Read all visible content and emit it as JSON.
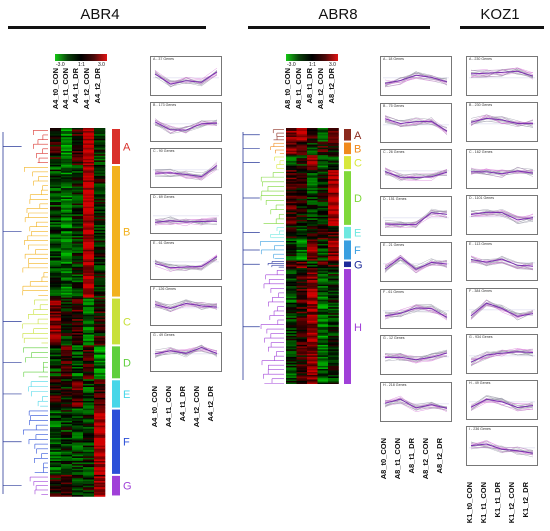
{
  "groups": [
    {
      "key": "abr4",
      "title": "ABR4",
      "color_scale": {
        "min": "-3.0",
        "mid": "1:1",
        "max": "3.0"
      },
      "heatmap_columns": [
        "A4_t0_CON",
        "A4_t1_CON",
        "A4_t1_DR",
        "A4_t2_CON",
        "A4_t2_DR"
      ],
      "profile_columns": [
        "A4_t0_CON",
        "A4_t1_CON",
        "A4_t1_DR",
        "A4_t2_CON",
        "A4_t2_DR"
      ],
      "clusters": [
        {
          "letter": "A",
          "color": "#d9302a"
        },
        {
          "letter": "B",
          "color": "#f2b21f"
        },
        {
          "letter": "C",
          "color": "#c8e03a"
        },
        {
          "letter": "D",
          "color": "#5fcf3c"
        },
        {
          "letter": "E",
          "color": "#47d6e8"
        },
        {
          "letter": "F",
          "color": "#2b4fd8"
        },
        {
          "letter": "G",
          "color": "#a040d8"
        }
      ],
      "profiles": [
        "A - 37 Genes",
        "B - 173 Genes",
        "C - 90 Genes",
        "D - 69 Genes",
        "E - 61 Genes",
        "F - 126 Genes",
        "G - 49 Genes"
      ]
    },
    {
      "key": "abr8",
      "title": "ABR8",
      "color_scale": {
        "min": "-3.0",
        "mid": "1:1",
        "max": "3.0"
      },
      "heatmap_columns": [
        "A8_t0_CON",
        "A8_t1_CON",
        "A8_t1_DR",
        "A8_t2_CON",
        "A8_t2_DR"
      ],
      "profile_columns": [
        "A8_t0_CON",
        "A8_t1_CON",
        "A8_t1_DR",
        "A8_t2_CON",
        "A8_t2_DR"
      ],
      "clusters": [
        {
          "letter": "A",
          "color": "#8b2a1e"
        },
        {
          "letter": "B",
          "color": "#f08a1c"
        },
        {
          "letter": "C",
          "color": "#d8e83c"
        },
        {
          "letter": "D",
          "color": "#7fd83a"
        },
        {
          "letter": "E",
          "color": "#6ee8e0"
        },
        {
          "letter": "F",
          "color": "#3a9fe0"
        },
        {
          "letter": "G",
          "color": "#1c2a9a"
        },
        {
          "letter": "H",
          "color": "#a040d8"
        }
      ],
      "profiles": [
        "A - 18 Genes",
        "B - 75 Genes",
        "C - 26 Genes",
        "D - 151 Genes",
        "E - 21 Genes",
        "F - 61 Genes",
        "G - 12 Genes",
        "H - 218 Genes"
      ]
    },
    {
      "key": "koz1",
      "title": "KOZ1",
      "profile_columns": [
        "K1_t0_CON",
        "K1_t1_CON",
        "K1_t1_DR",
        "K1_t2_CON",
        "K1_t2_DR"
      ],
      "profiles": [
        "A - 230 Genes",
        "B - 230 Genes",
        "C - 162 Genes",
        "D - 1101 Genes",
        "E - 113 Genes",
        "F - 384 Genes",
        "G - 934 Genes",
        "H - 49 Genes",
        "I - 236 Genes"
      ]
    }
  ]
}
